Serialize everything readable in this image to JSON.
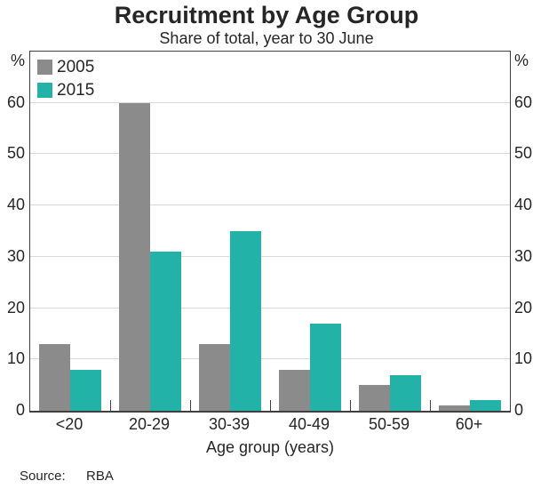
{
  "title": "Recruitment by Age Group",
  "subtitle": "Share of total, year to 30 June",
  "axis": {
    "unit_left": "%",
    "unit_right": "%",
    "xlabel": "Age group (years)"
  },
  "legend": [
    {
      "label": "2005",
      "color": "#8b8b8b"
    },
    {
      "label": "2015",
      "color": "#23b2a8"
    }
  ],
  "source": {
    "label": "Source:",
    "value": "RBA"
  },
  "colors": {
    "bar_2005": "#8b8b8b",
    "bar_2015": "#23b2a8",
    "frame": "#404040",
    "gridline": "#d6dada",
    "text": "#262626"
  },
  "chart_data": {
    "type": "bar",
    "title": "Recruitment by Age Group",
    "subtitle": "Share of total, year to 30 June",
    "categories": [
      "<20",
      "20-29",
      "30-39",
      "40-49",
      "50-59",
      "60+"
    ],
    "series": [
      {
        "name": "2005",
        "color": "#8b8b8b",
        "values": [
          13,
          60,
          13,
          8,
          5,
          1
        ]
      },
      {
        "name": "2015",
        "color": "#23b2a8",
        "values": [
          8,
          31,
          35,
          17,
          7,
          2
        ]
      }
    ],
    "xlabel": "Age group (years)",
    "ylabel": "%",
    "ylim": [
      0,
      70
    ],
    "yticks": [
      0,
      10,
      20,
      30,
      40,
      50,
      60
    ],
    "grid": true,
    "legend_position": "top-left-inside",
    "source": "RBA"
  }
}
